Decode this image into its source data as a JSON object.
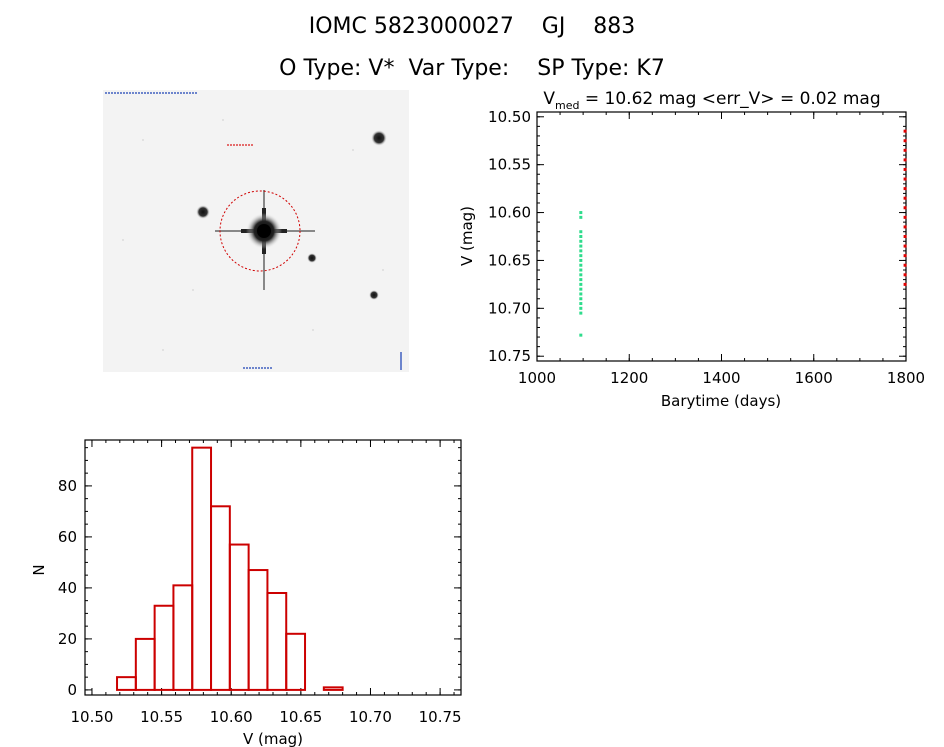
{
  "header": {
    "title": "IOMC 5823000027    GJ    883",
    "subtitle": "O Type: V*  Var Type:    SP Type: K7"
  },
  "stamp": {
    "note": "",
    "target_marker_color": "#d00000"
  },
  "chart_data": [
    {
      "type": "scatter",
      "title": "V_med = 10.62 mag <err_V> = 0.02 mag",
      "title_parts": {
        "pre": "V",
        "sub": "med",
        "post": " = 10.62 mag <err_V> = 0.02 mag"
      },
      "xlabel": "Barytime (days)",
      "ylabel": "V (mag)",
      "xlim": [
        1000,
        1800
      ],
      "ylim": [
        10.755,
        10.495
      ],
      "xticks": [
        1000,
        1200,
        1400,
        1600,
        1800
      ],
      "xtick_labels": [
        "1000",
        "1200",
        "1400",
        "1600",
        "1800"
      ],
      "yticks": [
        10.5,
        10.55,
        10.6,
        10.65,
        10.7,
        10.75
      ],
      "ytick_labels": [
        "10.50",
        "10.55",
        "10.60",
        "10.65",
        "10.70",
        "10.75"
      ],
      "series": [
        {
          "color": "#2edc8c",
          "points": [
            [
              1095,
              10.6
            ],
            [
              1095,
              10.605
            ],
            [
              1095,
              10.62
            ],
            [
              1095,
              10.625
            ],
            [
              1095,
              10.63
            ],
            [
              1095,
              10.635
            ],
            [
              1095,
              10.64
            ],
            [
              1095,
              10.645
            ],
            [
              1095,
              10.65
            ],
            [
              1095,
              10.655
            ],
            [
              1095,
              10.66
            ],
            [
              1095,
              10.665
            ],
            [
              1095,
              10.67
            ],
            [
              1095,
              10.675
            ],
            [
              1095,
              10.68
            ],
            [
              1095,
              10.685
            ],
            [
              1095,
              10.69
            ],
            [
              1095,
              10.695
            ],
            [
              1095,
              10.7
            ],
            [
              1095,
              10.705
            ],
            [
              1095,
              10.728
            ]
          ]
        },
        {
          "color": "#e00000",
          "points": [
            [
              1798,
              10.515
            ],
            [
              1798,
              10.525
            ],
            [
              1798,
              10.535
            ],
            [
              1798,
              10.545
            ],
            [
              1798,
              10.555
            ],
            [
              1798,
              10.565
            ],
            [
              1798,
              10.575
            ],
            [
              1798,
              10.585
            ],
            [
              1798,
              10.595
            ],
            [
              1798,
              10.605
            ],
            [
              1798,
              10.615
            ],
            [
              1798,
              10.625
            ],
            [
              1798,
              10.635
            ],
            [
              1798,
              10.645
            ],
            [
              1798,
              10.655
            ],
            [
              1798,
              10.665
            ],
            [
              1798,
              10.675
            ]
          ]
        }
      ]
    },
    {
      "type": "bar",
      "xlabel": "V (mag)",
      "ylabel": "N",
      "xlim": [
        10.495,
        10.765
      ],
      "ylim": [
        -2,
        98
      ],
      "xticks": [
        10.5,
        10.55,
        10.6,
        10.65,
        10.7,
        10.75
      ],
      "xtick_labels": [
        "10.50",
        "10.55",
        "10.60",
        "10.65",
        "10.70",
        "10.75"
      ],
      "yticks": [
        0,
        20,
        40,
        60,
        80
      ],
      "ytick_labels": [
        "0",
        "20",
        "40",
        "60",
        "80"
      ],
      "bar_color": "#cc0000",
      "bins": [
        {
          "left": 10.518,
          "right": 10.531,
          "value": 5
        },
        {
          "left": 10.531,
          "right": 10.544,
          "value": 20
        },
        {
          "left": 10.544,
          "right": 10.557,
          "value": 33
        },
        {
          "left": 10.557,
          "right": 10.57,
          "value": 41
        },
        {
          "left": 10.57,
          "right": 10.583,
          "value": 95
        },
        {
          "left": 10.583,
          "right": 10.596,
          "value": 72
        },
        {
          "left": 10.596,
          "right": 10.609,
          "value": 57
        },
        {
          "left": 10.609,
          "right": 10.622,
          "value": 47
        },
        {
          "left": 10.622,
          "right": 10.635,
          "value": 38
        },
        {
          "left": 10.635,
          "right": 10.648,
          "value": 22
        },
        {
          "left": 10.648,
          "right": 10.661,
          "value": 0
        },
        {
          "left": 10.661,
          "right": 10.674,
          "value": 1
        }
      ]
    }
  ]
}
